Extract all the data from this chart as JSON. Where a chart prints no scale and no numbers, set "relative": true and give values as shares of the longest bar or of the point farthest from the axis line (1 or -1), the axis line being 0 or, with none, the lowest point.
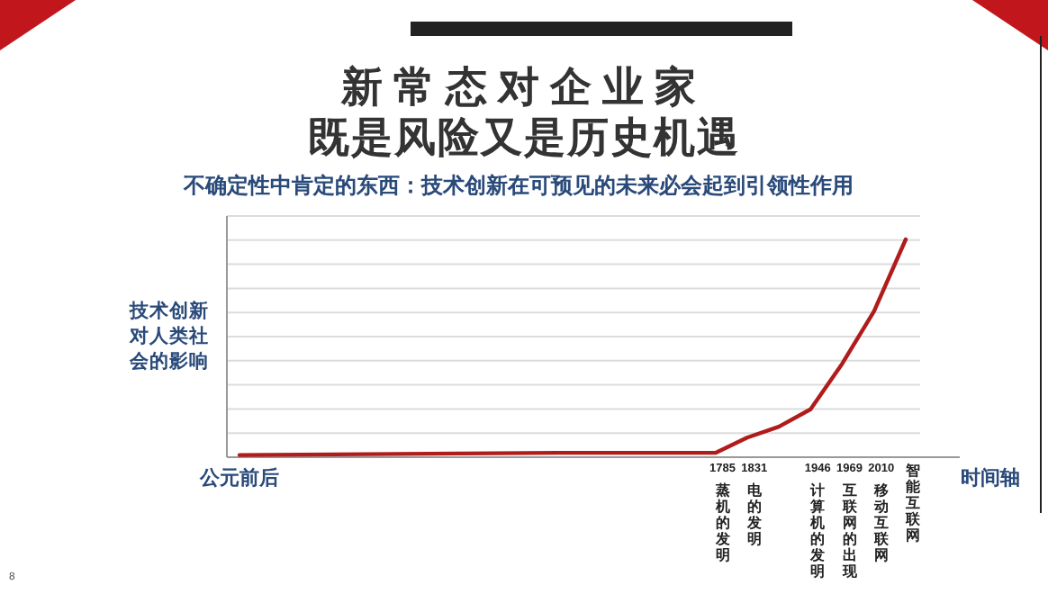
{
  "chart_data": {
    "type": "line",
    "relative": true,
    "title": "新常态对企业家",
    "subtitle": "既是风险又是历史机遇",
    "ylabel": "技术创新对人类社会的影响",
    "xlabel": "时间轴",
    "categories": [
      "公元前后",
      null,
      null,
      null,
      null,
      null,
      null,
      null,
      null,
      null,
      null,
      null,
      null,
      null,
      null,
      "1785\n蒸机的发明",
      "1831\n电的发明",
      null,
      "1946\n计算机的发明",
      "1969\n互联网的出现",
      "2010\n移动互联网",
      "\n智能互联网"
    ],
    "series": [
      {
        "color": "#b01c1c",
        "values": [
          0.01,
          0.011,
          0.012,
          0.013,
          0.014,
          0.015,
          0.016,
          0.017,
          0.018,
          0.019,
          0.02,
          0.02,
          0.02,
          0.02,
          0.02,
          0.02,
          0.09,
          0.14,
          0.22,
          0.43,
          0.67,
          1
        ]
      }
    ],
    "grid": "y",
    "marker": "none",
    "line_style": "solid",
    "annotations": [
      "不确定性中肯定的东西：技术创新在可预见的未来必会起到引领性作用",
      "8"
    ]
  }
}
